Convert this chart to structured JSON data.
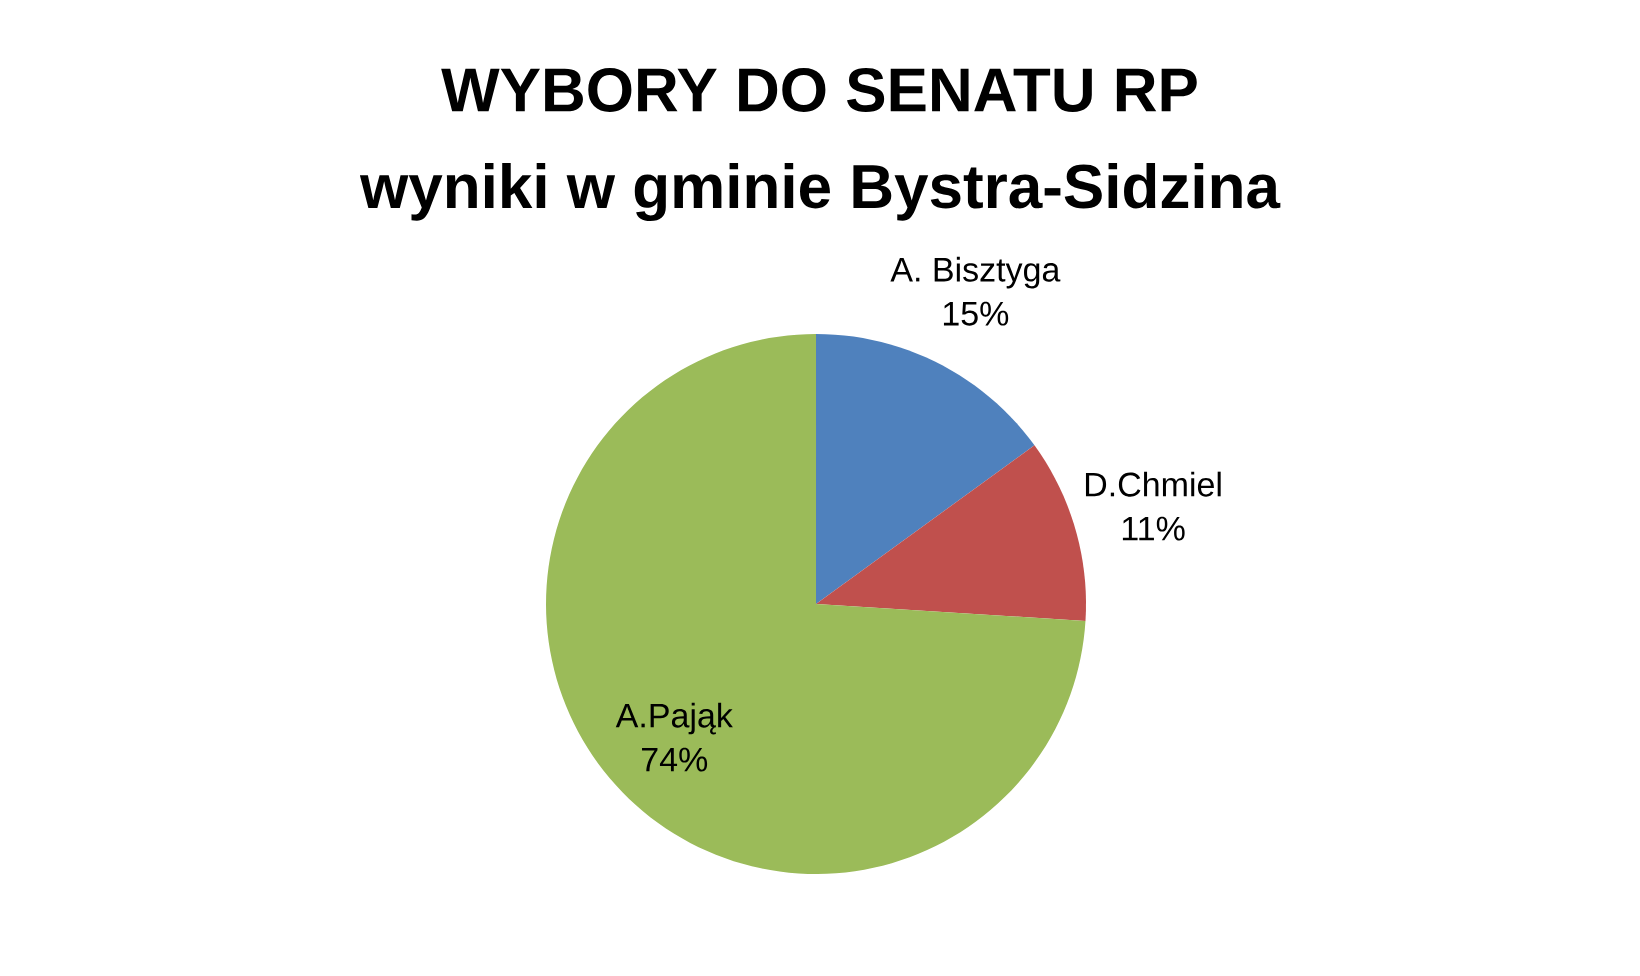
{
  "chart_data": {
    "type": "pie",
    "title": "WYBORY DO SENATU RP",
    "subtitle": "wyniki w gminie Bystra-Sidzina",
    "categories": [
      "A. Bisztyga",
      "D.Chmiel",
      "A.Pająk"
    ],
    "values": [
      15,
      11,
      74
    ],
    "value_labels": [
      "15%",
      "11%",
      "74%"
    ],
    "colors": [
      "#4f81bd",
      "#c0504d",
      "#9bbb59"
    ]
  }
}
